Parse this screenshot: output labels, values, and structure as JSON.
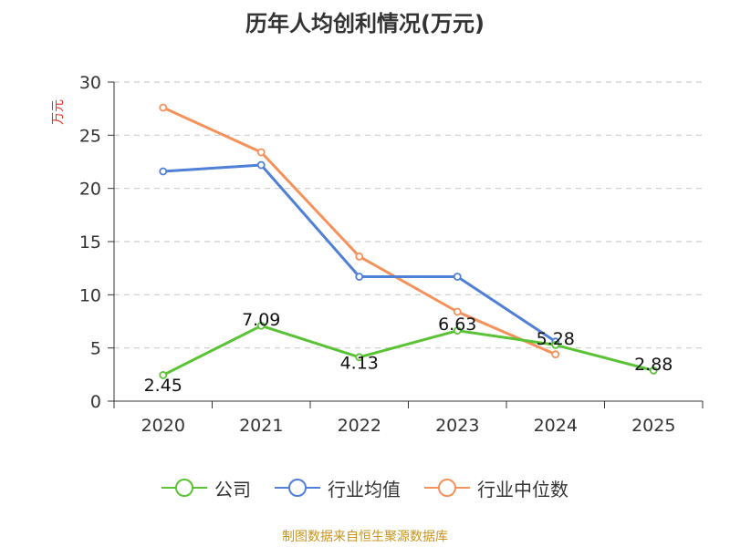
{
  "chart_data": {
    "type": "line",
    "title": "历年人均创利情况(万元)",
    "ylabel": "万元",
    "xlabel": "",
    "categories": [
      "2020",
      "2021",
      "2022",
      "2023",
      "2024",
      "2025"
    ],
    "ylim": [
      0,
      30
    ],
    "yticks": [
      0,
      5,
      10,
      15,
      20,
      25,
      30
    ],
    "grid": true,
    "legend_position": "bottom",
    "series": [
      {
        "name": "公司",
        "color": "#5ac335",
        "values": [
          2.45,
          7.09,
          4.13,
          6.63,
          5.28,
          2.88
        ],
        "labels": [
          "2.45",
          "7.09",
          "4.13",
          "6.63",
          "5.28",
          "2.88"
        ]
      },
      {
        "name": "行业均值",
        "color": "#4f7fd6",
        "values": [
          21.6,
          22.2,
          11.7,
          11.7,
          5.6,
          null
        ]
      },
      {
        "name": "行业中位数",
        "color": "#f5915a",
        "values": [
          27.6,
          23.4,
          13.6,
          8.4,
          4.4,
          null
        ]
      }
    ]
  },
  "source": "制图数据来自恒生聚源数据库"
}
